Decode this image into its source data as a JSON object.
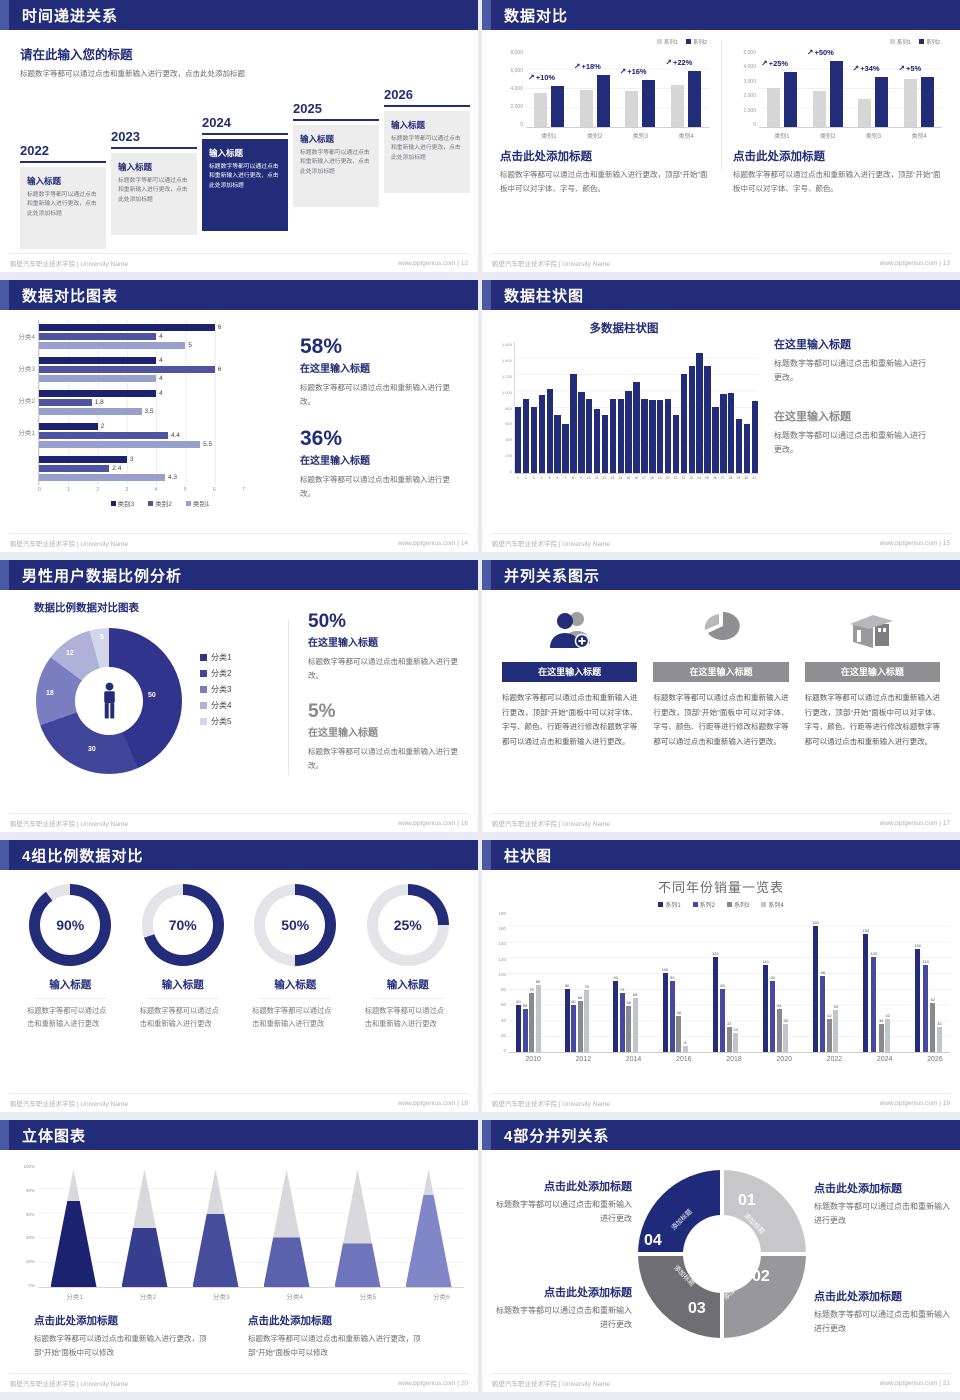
{
  "footer": {
    "left": "鹤壁汽车职业技术学院 | University Name",
    "url": "www.pptgenius.com"
  },
  "slides": [
    {
      "page": "12",
      "title": "时间递进关系",
      "heading": "请在此输入您的标题",
      "intro": "标题数字等都可以通过点击和重新输入进行更改，点击此处添加标题",
      "item_title": "输入标题",
      "item_body": "标题数字等都可以通过点击和重新输入进行更改，点击此处添加标题",
      "years": [
        "2022",
        "2023",
        "2024",
        "2025",
        "2026"
      ],
      "highlight_year": "2024"
    },
    {
      "page": "13",
      "title": "数据对比",
      "caption": "点击此处添加标题",
      "caption_body": "标题数字等都可以通过点击和重新输入进行更改，顶部“开始”面板中可以对字体、字号、颜色。"
    },
    {
      "page": "14",
      "title": "数据对比图表",
      "stats": [
        {
          "pct": "58%",
          "t": "在这里输入标题",
          "body": "标题数字等都可以通过点击和重新输入进行更改。"
        },
        {
          "pct": "36%",
          "t": "在这里输入标题",
          "body": "标题数字等都可以通过点击和重新输入进行更改。"
        }
      ]
    },
    {
      "page": "15",
      "title": "数据柱状图",
      "blocks": [
        {
          "t": "在这里输入标题",
          "body": "标题数字等都可以通过点击和重新输入进行更改。"
        },
        {
          "t": "在这里输入标题",
          "body": "标题数字等都可以通过点击和重新输入进行更改。"
        }
      ]
    },
    {
      "page": "16",
      "title": "男性用户数据比例分析",
      "chart_title": "数据比例数据对比图表",
      "stats": [
        {
          "pct": "50%",
          "t": "在这里输入标题",
          "body": "标题数字等都可以通过点击和重新输入进行更改。"
        },
        {
          "pct": "5%",
          "t": "在这里输入标题",
          "body": "标题数字等都可以通过点击和重新输入进行更改。"
        }
      ]
    },
    {
      "page": "17",
      "title": "并列关系图示",
      "cards": [
        {
          "icon": "person-add-icon",
          "t": "在这里输入标题",
          "body": "标题数字等都可以通过点击和重新输入进行更改，顶部“开始”面板中可以对字体、字号、颜色、行距等进行修改标题数字等都可以通过点击和重新输入进行更改。"
        },
        {
          "icon": "pie-3d-icon",
          "t": "在这里输入标题",
          "body": "标题数字等都可以通过点击和重新输入进行更改，顶部“开始”面板中可以对字体、字号、颜色、行距等进行修改标题数字等都可以通过点击和重新输入进行更改。"
        },
        {
          "icon": "building-icon",
          "t": "在这里输入标题",
          "body": "标题数字等都可以通过点击和重新输入进行更改，顶部“开始”面板中可以对字体、字号、颜色、行距等进行修改标题数字等都可以通过点击和重新输入进行更改。"
        }
      ]
    },
    {
      "page": "18",
      "title": "4组比例数据对比",
      "items": [
        {
          "label": "90%",
          "t": "输入标题",
          "body": "标题数字等都可以通过点击和重新输入进行更改"
        },
        {
          "label": "70%",
          "t": "输入标题",
          "body": "标题数字等都可以通过点击和重新输入进行更改"
        },
        {
          "label": "50%",
          "t": "输入标题",
          "body": "标题数字等都可以通过点击和重新输入进行更改"
        },
        {
          "label": "25%",
          "t": "输入标题",
          "body": "标题数字等都可以通过点击和重新输入进行更改"
        }
      ]
    },
    {
      "page": "19",
      "title": "柱状图"
    },
    {
      "page": "20",
      "title": "立体图表",
      "captions": [
        {
          "t": "点击此处添加标题",
          "body": "标题数字等都可以通过点击和重新输入进行更改，顶部“开始”面板中可以修改"
        },
        {
          "t": "点击此处添加标题",
          "body": "标题数字等都可以通过点击和重新输入进行更改，顶部“开始”面板中可以修改"
        }
      ]
    },
    {
      "page": "21",
      "title": "4部分并列关系",
      "blocks": [
        {
          "t": "点击此处添加标题",
          "body": "标题数字等都可以通过点击和重新输入进行更改"
        },
        {
          "t": "点击此处添加标题",
          "body": "标题数字等都可以通过点击和重新输入进行更改"
        },
        {
          "t": "点击此处添加标题",
          "body": "标题数字等都可以通过点击和重新输入进行更改"
        },
        {
          "t": "点击此处添加标题",
          "body": "标题数字等都可以通过点击和重新输入进行更改"
        }
      ],
      "segments": [
        {
          "num": "01",
          "label": "添加标题"
        },
        {
          "num": "02",
          "label": "添加标题"
        },
        {
          "num": "03",
          "label": "添加标题"
        },
        {
          "num": "04",
          "label": "添加标题"
        }
      ]
    }
  ],
  "chart_data": [
    {
      "id": "compare-left",
      "type": "bar",
      "categories": [
        "类别1",
        "类别2",
        "类别3",
        "类别4"
      ],
      "series": [
        {
          "name": "系列1",
          "color": "#d6d6d6",
          "values": [
            3500,
            3800,
            3700,
            4300
          ]
        },
        {
          "name": "系列2",
          "color": "#222c78",
          "values": [
            4200,
            5300,
            4800,
            5700
          ]
        }
      ],
      "growth_labels": [
        "+10%",
        "+18%",
        "+16%",
        "+22%"
      ],
      "ylim": [
        0,
        8000
      ],
      "yticks": [
        "8,000",
        "6,000",
        "4,000",
        "2,000",
        "0"
      ]
    },
    {
      "id": "compare-right",
      "type": "bar",
      "categories": [
        "类别1",
        "类别2",
        "类别3",
        "类别4"
      ],
      "series": [
        {
          "name": "系列1",
          "color": "#d6d6d6",
          "values": [
            2500,
            2300,
            1800,
            3100
          ]
        },
        {
          "name": "系列2",
          "color": "#222c78",
          "values": [
            3500,
            4200,
            3200,
            3200
          ]
        }
      ],
      "growth_labels": [
        "+25%",
        "+50%",
        "+34%",
        "+5%"
      ],
      "ylim": [
        0,
        5000
      ],
      "yticks": [
        "5,000",
        "4,000",
        "3,000",
        "2,000",
        "1,000",
        "0"
      ]
    },
    {
      "id": "hbar-compare",
      "type": "bar-horizontal",
      "group_labels": [
        "分类4",
        "分类3",
        "分类2",
        "分类1",
        ""
      ],
      "legend": [
        "类别3",
        "类别2",
        "类别1"
      ],
      "colors": [
        "#1b2270",
        "#4f54a0",
        "#9aa0ce"
      ],
      "values": [
        [
          6,
          4,
          5
        ],
        [
          4,
          6,
          4
        ],
        [
          4,
          1.8,
          3.5
        ],
        [
          2,
          4.4,
          5.5
        ],
        [
          3,
          2.4,
          4.3
        ]
      ],
      "xlim": [
        0,
        7
      ],
      "xticks": [
        "0",
        "1",
        "2",
        "3",
        "4",
        "5",
        "6",
        "7"
      ]
    },
    {
      "id": "multi-column",
      "type": "bar",
      "title": "多数据柱状图",
      "x": [
        1,
        2,
        3,
        4,
        5,
        6,
        7,
        8,
        9,
        10,
        11,
        12,
        13,
        14,
        15,
        16,
        17,
        18,
        19,
        20,
        21,
        22,
        23,
        24,
        25,
        26,
        27,
        28,
        29,
        30,
        31
      ],
      "values": [
        800,
        900,
        800,
        950,
        1020,
        700,
        600,
        1200,
        980,
        900,
        780,
        700,
        900,
        900,
        1000,
        1100,
        900,
        880,
        880,
        900,
        700,
        1200,
        1300,
        1450,
        1300,
        800,
        960,
        970,
        660,
        600,
        870
      ],
      "bar_color": "#222c78",
      "ylim": [
        0,
        1600
      ],
      "yticks": [
        "1,600",
        "1,400",
        "1,200",
        "1,000",
        "800",
        "600",
        "400",
        "200",
        "0"
      ]
    },
    {
      "id": "male-user-donut",
      "type": "pie",
      "title": "数据比例数据对比图表",
      "labels": [
        "分类1",
        "分类2",
        "分类3",
        "分类4",
        "分类5"
      ],
      "values": [
        50,
        30,
        18,
        12,
        5
      ],
      "colors": [
        "#30348c",
        "#41459a",
        "#7a7ec0",
        "#aeb1d8",
        "#d3d5ea"
      ]
    },
    {
      "id": "progress-rings",
      "type": "pie",
      "values": [
        90,
        70,
        50,
        25
      ],
      "fill_color": "#222c78",
      "track_color": "#e4e4e8"
    },
    {
      "id": "sales-by-year",
      "type": "bar",
      "title": "不同年份销量一览表",
      "categories": [
        "2010",
        "2012",
        "2014",
        "2016",
        "2018",
        "2020",
        "2022",
        "2024",
        "2026"
      ],
      "series": [
        {
          "name": "系列1",
          "color": "#222c78",
          "values": [
            60,
            80,
            90,
            100,
            120,
            110,
            160,
            150,
            130
          ]
        },
        {
          "name": "系列2",
          "color": "#4549a0",
          "values": [
            55,
            60,
            75,
            90,
            80,
            90,
            96,
            120,
            110
          ]
        },
        {
          "name": "系列3",
          "color": "#8a8a8e",
          "values": [
            75,
            65,
            58,
            46,
            32,
            54,
            42,
            36,
            62
          ]
        },
        {
          "name": "系列4",
          "color": "#c2c5cb",
          "values": [
            85,
            78,
            68,
            8,
            24,
            36,
            53,
            42,
            32
          ]
        }
      ],
      "ylim": [
        0,
        180
      ],
      "yticks": [
        "180",
        "160",
        "140",
        "120",
        "100",
        "80",
        "60",
        "40",
        "20",
        "0"
      ]
    },
    {
      "id": "cone-chart",
      "type": "bar",
      "categories": [
        "分类1",
        "分类2",
        "分类3",
        "分类4",
        "分类5",
        "分类6"
      ],
      "fill_percent": [
        73,
        50,
        62,
        42,
        37,
        78
      ],
      "colors": [
        "#1b2270",
        "#363d8e",
        "#464d9c",
        "#5a61ad",
        "#6f75bb",
        "#8086c8"
      ],
      "top_color": "#d9d9dd",
      "yticks": [
        "100%",
        "80%",
        "60%",
        "40%",
        "20%",
        "0%"
      ]
    }
  ]
}
